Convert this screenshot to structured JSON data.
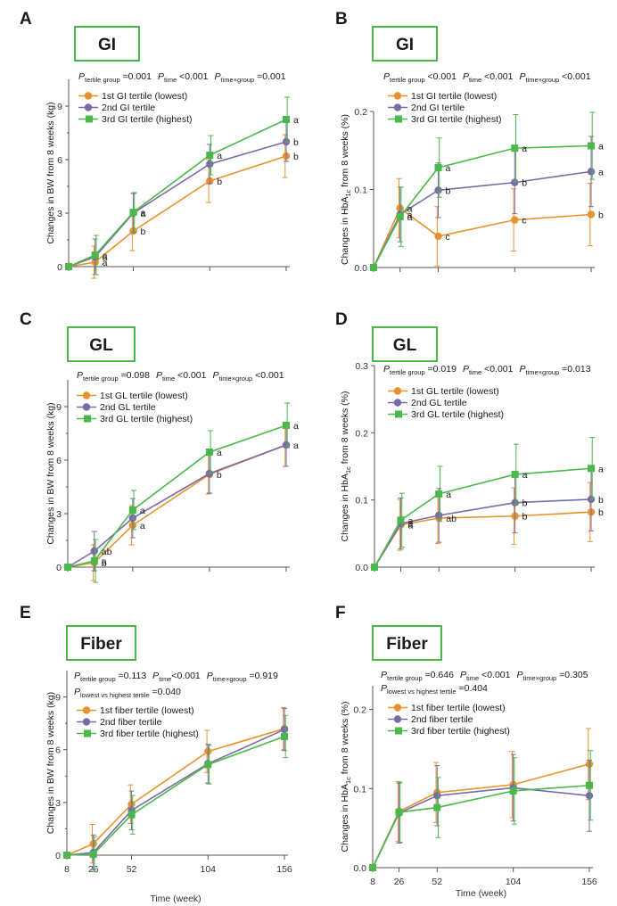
{
  "colors": {
    "series1": "#E8922E",
    "series2": "#7B6AA8",
    "series3": "#4BB84B",
    "badge_border": "#4BB84B",
    "axis": "#555555"
  },
  "chart_data": [
    {
      "type": "line",
      "panel": "A",
      "badge": "GI",
      "stats_lines": [
        [
          [
            "P",
            "tertile group",
            " =0.001"
          ],
          [
            "P",
            "time",
            " <0.001"
          ],
          [
            "P",
            "time×group",
            " =0.001"
          ]
        ]
      ],
      "x": [
        8,
        26,
        52,
        104,
        156
      ],
      "x_tick_labels": [],
      "xlabel": "",
      "ylabel": "Changes in BW from 8 weeks (kg)",
      "ylim": [
        0,
        10.5
      ],
      "yticks": [
        0,
        3,
        6,
        9
      ],
      "series": [
        {
          "name": "1st GI tertile (lowest)",
          "marker": "circle",
          "values": [
            0,
            0.25,
            2.0,
            4.8,
            6.2
          ],
          "err": [
            0,
            0.9,
            1.1,
            1.2,
            1.2
          ],
          "labels": [
            "",
            "a",
            "b",
            "b",
            "b"
          ]
        },
        {
          "name": "2nd GI tertile",
          "marker": "circle",
          "values": [
            0,
            0.55,
            3.0,
            5.75,
            7.0
          ],
          "err": [
            0,
            1.0,
            1.1,
            1.1,
            1.1
          ],
          "labels": [
            "",
            "a",
            "a",
            "",
            "b"
          ]
        },
        {
          "name": "3rd GI tertile (highest)",
          "marker": "square",
          "values": [
            0,
            0.65,
            3.05,
            6.25,
            8.25
          ],
          "err": [
            0,
            1.1,
            1.1,
            1.1,
            1.25
          ],
          "labels": [
            "",
            "a",
            "a",
            "a",
            "a"
          ]
        }
      ]
    },
    {
      "type": "line",
      "panel": "B",
      "badge": "GI",
      "stats_lines": [
        [
          [
            "P",
            "tertile group",
            " <0.001"
          ],
          [
            "P",
            "time",
            " <0.001"
          ],
          [
            "P",
            "time×group",
            " <0.001"
          ]
        ]
      ],
      "x": [
        8,
        26,
        52,
        104,
        156
      ],
      "x_tick_labels": [],
      "xlabel": "",
      "ylabel": "Changes in HbA1c from 8 weeks (%)",
      "ylim": [
        0,
        0.2
      ],
      "yticks": [
        0.0,
        0.1,
        0.2
      ],
      "ytick_labels": [
        "0.0",
        "0.1",
        "0.2"
      ],
      "series": [
        {
          "name": "1st GI tertile (lowest)",
          "marker": "circle",
          "values": [
            0,
            0.076,
            0.04,
            0.061,
            0.068
          ],
          "err": [
            0,
            0.038,
            0.038,
            0.04,
            0.04
          ],
          "labels": [
            "",
            "a",
            "c",
            "c",
            "b"
          ]
        },
        {
          "name": "2nd GI tertile",
          "marker": "circle",
          "values": [
            0,
            0.068,
            0.099,
            0.109,
            0.123
          ],
          "err": [
            0,
            0.035,
            0.035,
            0.04,
            0.045
          ],
          "labels": [
            "",
            "a",
            "b",
            "b",
            "a"
          ]
        },
        {
          "name": "3rd GI tertile (highest)",
          "marker": "square",
          "values": [
            0,
            0.065,
            0.128,
            0.153,
            0.156
          ],
          "err": [
            0,
            0.038,
            0.038,
            0.043,
            0.043
          ],
          "labels": [
            "",
            "a",
            "a",
            "a",
            "a"
          ]
        }
      ]
    },
    {
      "type": "line",
      "panel": "C",
      "badge": "GL",
      "stats_lines": [
        [
          [
            "P",
            "tertile group",
            " =0.098"
          ],
          [
            "P",
            "time",
            " <0.001"
          ],
          [
            "P",
            "time×group",
            " <0.001"
          ]
        ]
      ],
      "x": [
        8,
        26,
        52,
        104,
        156
      ],
      "x_tick_labels": [],
      "xlabel": "",
      "ylabel": "Changes in BW from 8 weeks (kg)",
      "ylim": [
        0,
        10.5
      ],
      "yticks": [
        0,
        3,
        6,
        9
      ],
      "series": [
        {
          "name": "1st GL tertile (lowest)",
          "marker": "circle",
          "values": [
            0,
            0.25,
            2.35,
            5.2,
            6.85
          ],
          "err": [
            0,
            1.0,
            1.1,
            1.1,
            1.2
          ],
          "labels": [
            "",
            "b",
            "a",
            "b",
            "a"
          ]
        },
        {
          "name": "2nd GL tertile",
          "marker": "circle",
          "values": [
            0,
            0.9,
            2.75,
            5.25,
            6.85
          ],
          "err": [
            0,
            1.1,
            1.1,
            1.1,
            1.2
          ],
          "labels": [
            "",
            "ab",
            "",
            "",
            ""
          ]
        },
        {
          "name": "3rd GL tertile (highest)",
          "marker": "square",
          "values": [
            0,
            0.35,
            3.2,
            6.45,
            7.95
          ],
          "err": [
            0,
            1.2,
            1.1,
            1.2,
            1.25
          ],
          "labels": [
            "",
            "a",
            "a",
            "a",
            "a"
          ]
        }
      ]
    },
    {
      "type": "line",
      "panel": "D",
      "badge": "GL",
      "stats_lines": [
        [
          [
            "P",
            "tertile group",
            " =0.019"
          ],
          [
            "P",
            "time",
            " <0.001"
          ],
          [
            "P",
            "time×group",
            " =0.013"
          ]
        ]
      ],
      "x": [
        8,
        26,
        52,
        104,
        156
      ],
      "x_tick_labels": [],
      "xlabel": "",
      "ylabel": "Changes in HbA1c from 8 weeks (%)",
      "ylim": [
        0,
        0.3
      ],
      "yticks": [
        0.0,
        0.1,
        0.2,
        0.3
      ],
      "ytick_labels": [
        "0.0",
        "0.1",
        "0.2",
        "0.3"
      ],
      "series": [
        {
          "name": "1st GL tertile (lowest)",
          "marker": "circle",
          "values": [
            0,
            0.063,
            0.073,
            0.076,
            0.082
          ],
          "err": [
            0,
            0.038,
            0.038,
            0.042,
            0.044
          ],
          "labels": [
            "",
            "a",
            "ab",
            "b",
            "b"
          ]
        },
        {
          "name": "2nd GL tertile",
          "marker": "circle",
          "values": [
            0,
            0.065,
            0.077,
            0.096,
            0.101
          ],
          "err": [
            0,
            0.038,
            0.04,
            0.045,
            0.047
          ],
          "labels": [
            "",
            "a",
            "",
            "b",
            "b"
          ]
        },
        {
          "name": "3rd GL tertile (highest)",
          "marker": "square",
          "values": [
            0,
            0.07,
            0.109,
            0.138,
            0.147
          ],
          "err": [
            0,
            0.04,
            0.041,
            0.045,
            0.046
          ],
          "labels": [
            "",
            "a",
            "a",
            "a",
            "a"
          ]
        }
      ]
    },
    {
      "type": "line",
      "panel": "E",
      "badge": "Fiber",
      "stats_lines": [
        [
          [
            "P",
            "tertile group",
            " =0.113"
          ],
          [
            "P",
            "time",
            "<0.001"
          ],
          [
            "P",
            "time×group",
            " =0.919"
          ]
        ],
        [
          [
            "P",
            "lowest vs highest tertile",
            " =0.040"
          ]
        ]
      ],
      "x": [
        8,
        26,
        52,
        104,
        156
      ],
      "x_tick_labels": [
        "8",
        "26",
        "52",
        "104",
        "156"
      ],
      "xlabel": "Time (week)",
      "ylabel": "Changes in BW from 8 weeks (kg)",
      "ylim": [
        0,
        10.5
      ],
      "yticks": [
        0,
        3,
        6,
        9
      ],
      "series": [
        {
          "name": "1st fiber tertile (lowest)",
          "marker": "circle",
          "values": [
            0,
            0.65,
            2.9,
            5.9,
            7.2
          ],
          "err": [
            0,
            1.1,
            1.1,
            1.2,
            1.2
          ],
          "labels": []
        },
        {
          "name": "2nd fiber tertile",
          "marker": "circle",
          "values": [
            0,
            0.15,
            2.55,
            5.2,
            7.15
          ],
          "err": [
            0,
            1.0,
            1.1,
            1.1,
            1.2
          ],
          "labels": []
        },
        {
          "name": "3rd fiber tertile (highest)",
          "marker": "square",
          "values": [
            0,
            0.05,
            2.3,
            5.15,
            6.75
          ],
          "err": [
            0,
            1.0,
            1.1,
            1.1,
            1.2
          ],
          "labels": []
        }
      ]
    },
    {
      "type": "line",
      "panel": "F",
      "badge": "Fiber",
      "stats_lines": [
        [
          [
            "P",
            "tertile group",
            " =0.646"
          ],
          [
            "P",
            "time",
            " <0.001"
          ],
          [
            "P",
            "time×group",
            " =0.305"
          ]
        ],
        [
          [
            "P",
            "lowest vs highest tertile",
            " =0.404"
          ]
        ]
      ],
      "x": [
        8,
        26,
        52,
        104,
        156
      ],
      "x_tick_labels": [
        "8",
        "26",
        "52",
        "104",
        "156"
      ],
      "xlabel": "Time (week)",
      "ylabel": "Changes in HbA1c from 8 weeks (%)",
      "ylim": [
        0,
        0.23
      ],
      "yticks": [
        0.0,
        0.1,
        0.2
      ],
      "ytick_labels": [
        "0.0",
        "0.1",
        "0.2"
      ],
      "series": [
        {
          "name": "1st fiber tertile (lowest)",
          "marker": "circle",
          "values": [
            0,
            0.071,
            0.095,
            0.105,
            0.131
          ],
          "err": [
            0,
            0.038,
            0.038,
            0.042,
            0.045
          ],
          "labels": []
        },
        {
          "name": "2nd fiber tertile",
          "marker": "circle",
          "values": [
            0,
            0.069,
            0.091,
            0.101,
            0.091
          ],
          "err": [
            0,
            0.038,
            0.038,
            0.042,
            0.045
          ],
          "labels": []
        },
        {
          "name": "3rd fiber tertile (highest)",
          "marker": "square",
          "values": [
            0,
            0.07,
            0.076,
            0.097,
            0.104
          ],
          "err": [
            0,
            0.038,
            0.038,
            0.042,
            0.044
          ],
          "labels": []
        }
      ]
    }
  ]
}
